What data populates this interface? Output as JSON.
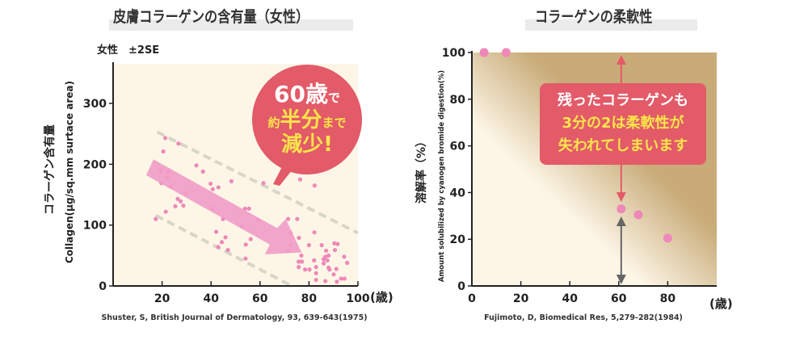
{
  "colors": {
    "point": "#ee88b8",
    "arrow": "#f19cc6",
    "callout": "#e35a68",
    "highlight": "#f9e54a",
    "band": "#d8d6c8",
    "plot_bg": "#fdf6e7",
    "gradient_dark": "#c8ab78"
  },
  "chart_data": [
    {
      "type": "scatter",
      "title": "皮膚コラーゲンの含有量（女性）",
      "subtitle": "女性　±2SE",
      "ylabel_ja": "コラーゲン含有量",
      "ylabel": "Collagen(µg/sq.mm surtace area)",
      "x_unit": "(歳)",
      "xlim": [
        0,
        100
      ],
      "ylim": [
        0,
        365
      ],
      "xticks": [
        20,
        40,
        60,
        80,
        100
      ],
      "yticks": [
        0,
        100,
        200,
        300
      ],
      "grid": false,
      "source": "Shuster, S, British Journal of Dermatology, 93, 639-643(1975)",
      "points": [
        [
          17.4,
          110
        ],
        [
          21.3,
          243
        ],
        [
          20.5,
          221
        ],
        [
          19.4,
          192
        ],
        [
          19.4,
          188
        ],
        [
          22.4,
          188
        ],
        [
          22.1,
          178
        ],
        [
          19.7,
          169
        ],
        [
          23.5,
          163
        ],
        [
          26.7,
          234
        ],
        [
          21.5,
          122
        ],
        [
          25.4,
          131
        ],
        [
          26.4,
          143
        ],
        [
          27.6,
          139
        ],
        [
          28.7,
          132
        ],
        [
          29.8,
          152
        ],
        [
          34,
          198
        ],
        [
          36.7,
          188
        ],
        [
          39.8,
          168
        ],
        [
          40.7,
          159
        ],
        [
          43,
          162
        ],
        [
          40.8,
          127
        ],
        [
          48.3,
          172
        ],
        [
          44.9,
          110
        ],
        [
          42.1,
          89
        ],
        [
          45.9,
          80
        ],
        [
          44.4,
          72
        ],
        [
          42.9,
          64
        ],
        [
          46.9,
          59
        ],
        [
          53.9,
          127
        ],
        [
          55.5,
          127
        ],
        [
          52.6,
          98
        ],
        [
          56.2,
          77
        ],
        [
          54.2,
          68
        ],
        [
          54.1,
          45
        ],
        [
          59.2,
          108
        ],
        [
          61.4,
          169
        ],
        [
          71.5,
          110
        ],
        [
          75.2,
          110
        ],
        [
          76.4,
          175
        ],
        [
          82.3,
          165
        ],
        [
          72.5,
          87
        ],
        [
          75.9,
          79
        ],
        [
          72.4,
          67
        ],
        [
          71.3,
          58
        ],
        [
          76.9,
          50
        ],
        [
          75.8,
          40
        ],
        [
          77.1,
          40
        ],
        [
          75.8,
          31
        ],
        [
          78.4,
          27
        ],
        [
          80.2,
          27
        ],
        [
          80,
          67
        ],
        [
          82.2,
          88
        ],
        [
          82.1,
          42
        ],
        [
          82.9,
          31
        ],
        [
          82.9,
          21
        ],
        [
          82.9,
          10
        ],
        [
          85.2,
          67
        ],
        [
          87,
          58
        ],
        [
          86.7,
          48
        ],
        [
          88,
          50
        ],
        [
          86,
          44
        ],
        [
          87.5,
          42
        ],
        [
          86,
          37
        ],
        [
          88,
          30
        ],
        [
          88.4,
          27
        ],
        [
          90.6,
          59
        ],
        [
          90.4,
          70
        ],
        [
          91.7,
          69
        ],
        [
          91.2,
          28
        ],
        [
          90.1,
          19
        ],
        [
          91.4,
          7
        ],
        [
          86.7,
          8
        ],
        [
          93.1,
          12
        ],
        [
          94.5,
          12
        ],
        [
          94.4,
          48
        ],
        [
          95.6,
          38
        ]
      ],
      "bands": [
        [
          [
            18,
            253
          ],
          [
            100,
            87
          ]
        ],
        [
          [
            17.4,
            116
          ],
          [
            73,
            0
          ]
        ]
      ],
      "annotation": {
        "line1_num": "60歳",
        "line1_suffix": "で",
        "line2_pre": "約",
        "line2_main": "半分",
        "line2_suffix": "まで",
        "line3": "減少!"
      }
    },
    {
      "type": "scatter",
      "title": "コラーゲンの柔軟性",
      "ylabel_ja": "溶解率（%）",
      "ylabel": "Amount solubilized by cyanogen bromide digestion(%)",
      "x_unit": "(歳)",
      "xlim": [
        0,
        100
      ],
      "ylim": [
        0,
        100
      ],
      "xticks": [
        0,
        20,
        40,
        60,
        80
      ],
      "yticks": [
        0,
        20,
        40,
        60,
        80,
        100
      ],
      "grid": false,
      "source": "Fujimoto, D, Biomedical Res, 5,279-282(1984)",
      "points": [
        [
          5,
          100
        ],
        [
          14,
          100
        ],
        [
          61,
          33
        ],
        [
          68,
          30.5
        ],
        [
          80,
          20.5
        ]
      ],
      "annotation": {
        "line1": "残ったコラーゲンも",
        "line2_a": "3分の2",
        "line2_b": "は柔軟性が",
        "line3": "失われてしまいます"
      }
    }
  ]
}
